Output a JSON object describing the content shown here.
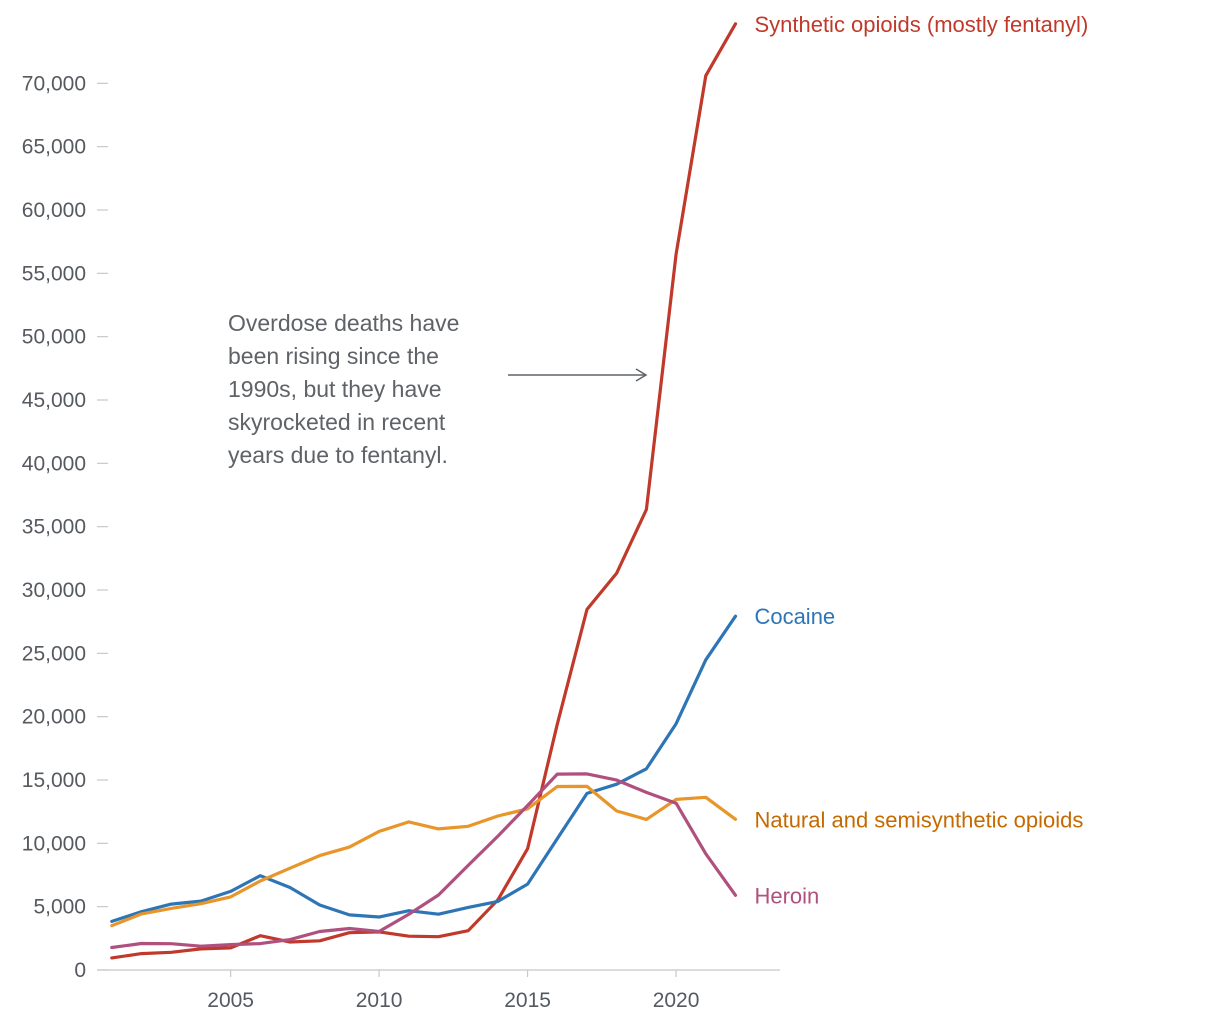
{
  "chart_data": {
    "type": "line",
    "title": "",
    "xlabel": "",
    "ylabel": "",
    "x": [
      2001,
      2002,
      2003,
      2004,
      2005,
      2006,
      2007,
      2008,
      2009,
      2010,
      2011,
      2012,
      2013,
      2014,
      2015,
      2016,
      2017,
      2018,
      2019,
      2020,
      2021,
      2022
    ],
    "xlim": [
      2000.5,
      2023.5
    ],
    "ylim": [
      0,
      75000
    ],
    "x_ticks": [
      2005,
      2010,
      2015,
      2020
    ],
    "x_tick_labels": [
      "2005",
      "2010",
      "2015",
      "2020"
    ],
    "y_ticks": [
      0,
      5000,
      10000,
      15000,
      20000,
      25000,
      30000,
      35000,
      40000,
      45000,
      50000,
      55000,
      60000,
      65000,
      70000
    ],
    "y_tick_labels": [
      "0",
      "5,000",
      "10,000",
      "15,000",
      "20,000",
      "25,000",
      "30,000",
      "35,000",
      "40,000",
      "45,000",
      "50,000",
      "55,000",
      "60,000",
      "65,000",
      "70,000"
    ],
    "grid": false,
    "legend": "direct labels at line ends",
    "series": [
      {
        "name": "Synthetic opioids (mostly fentanyl)",
        "color": "#c0392b",
        "label_color": "#c0392b",
        "values": [
          957,
          1295,
          1400,
          1664,
          1742,
          2707,
          2213,
          2306,
          2946,
          3007,
          2666,
          2628,
          3105,
          5544,
          9580,
          19413,
          28466,
          31335,
          36359,
          56516,
          70601,
          74700
        ]
      },
      {
        "name": "Cocaine",
        "color": "#2e75b6",
        "label_color": "#2e75b6",
        "values": [
          3833,
          4599,
          5199,
          5443,
          6208,
          7448,
          6512,
          5129,
          4350,
          4183,
          4681,
          4404,
          4944,
          5415,
          6784,
          10375,
          13942,
          14666,
          15883,
          19447,
          24486,
          27930
        ]
      },
      {
        "name": "Natural and semisynthetic opioids",
        "color": "#e8952a",
        "label_color": "#c46a00",
        "values": [
          3500,
          4432,
          4867,
          5231,
          5771,
          7023,
          8040,
          9030,
          9700,
          10943,
          11693,
          11140,
          11346,
          12159,
          12727,
          14487,
          14495,
          12552,
          11886,
          13471,
          13633,
          11900
        ]
      },
      {
        "name": "Heroin",
        "color": "#b0507f",
        "label_color": "#b0507f",
        "values": [
          1779,
          2089,
          2080,
          1878,
          2009,
          2088,
          2399,
          3041,
          3278,
          3036,
          4397,
          5925,
          8257,
          10574,
          12989,
          15469,
          15482,
          14996,
          14019,
          13165,
          9173,
          5900
        ]
      }
    ],
    "annotation": {
      "lines": [
        "Overdose deaths have",
        "been rising since the",
        "1990s, but they have",
        "skyrocketed in recent",
        "years due to fentanyl."
      ],
      "arrow_color": "#5f6368"
    }
  }
}
